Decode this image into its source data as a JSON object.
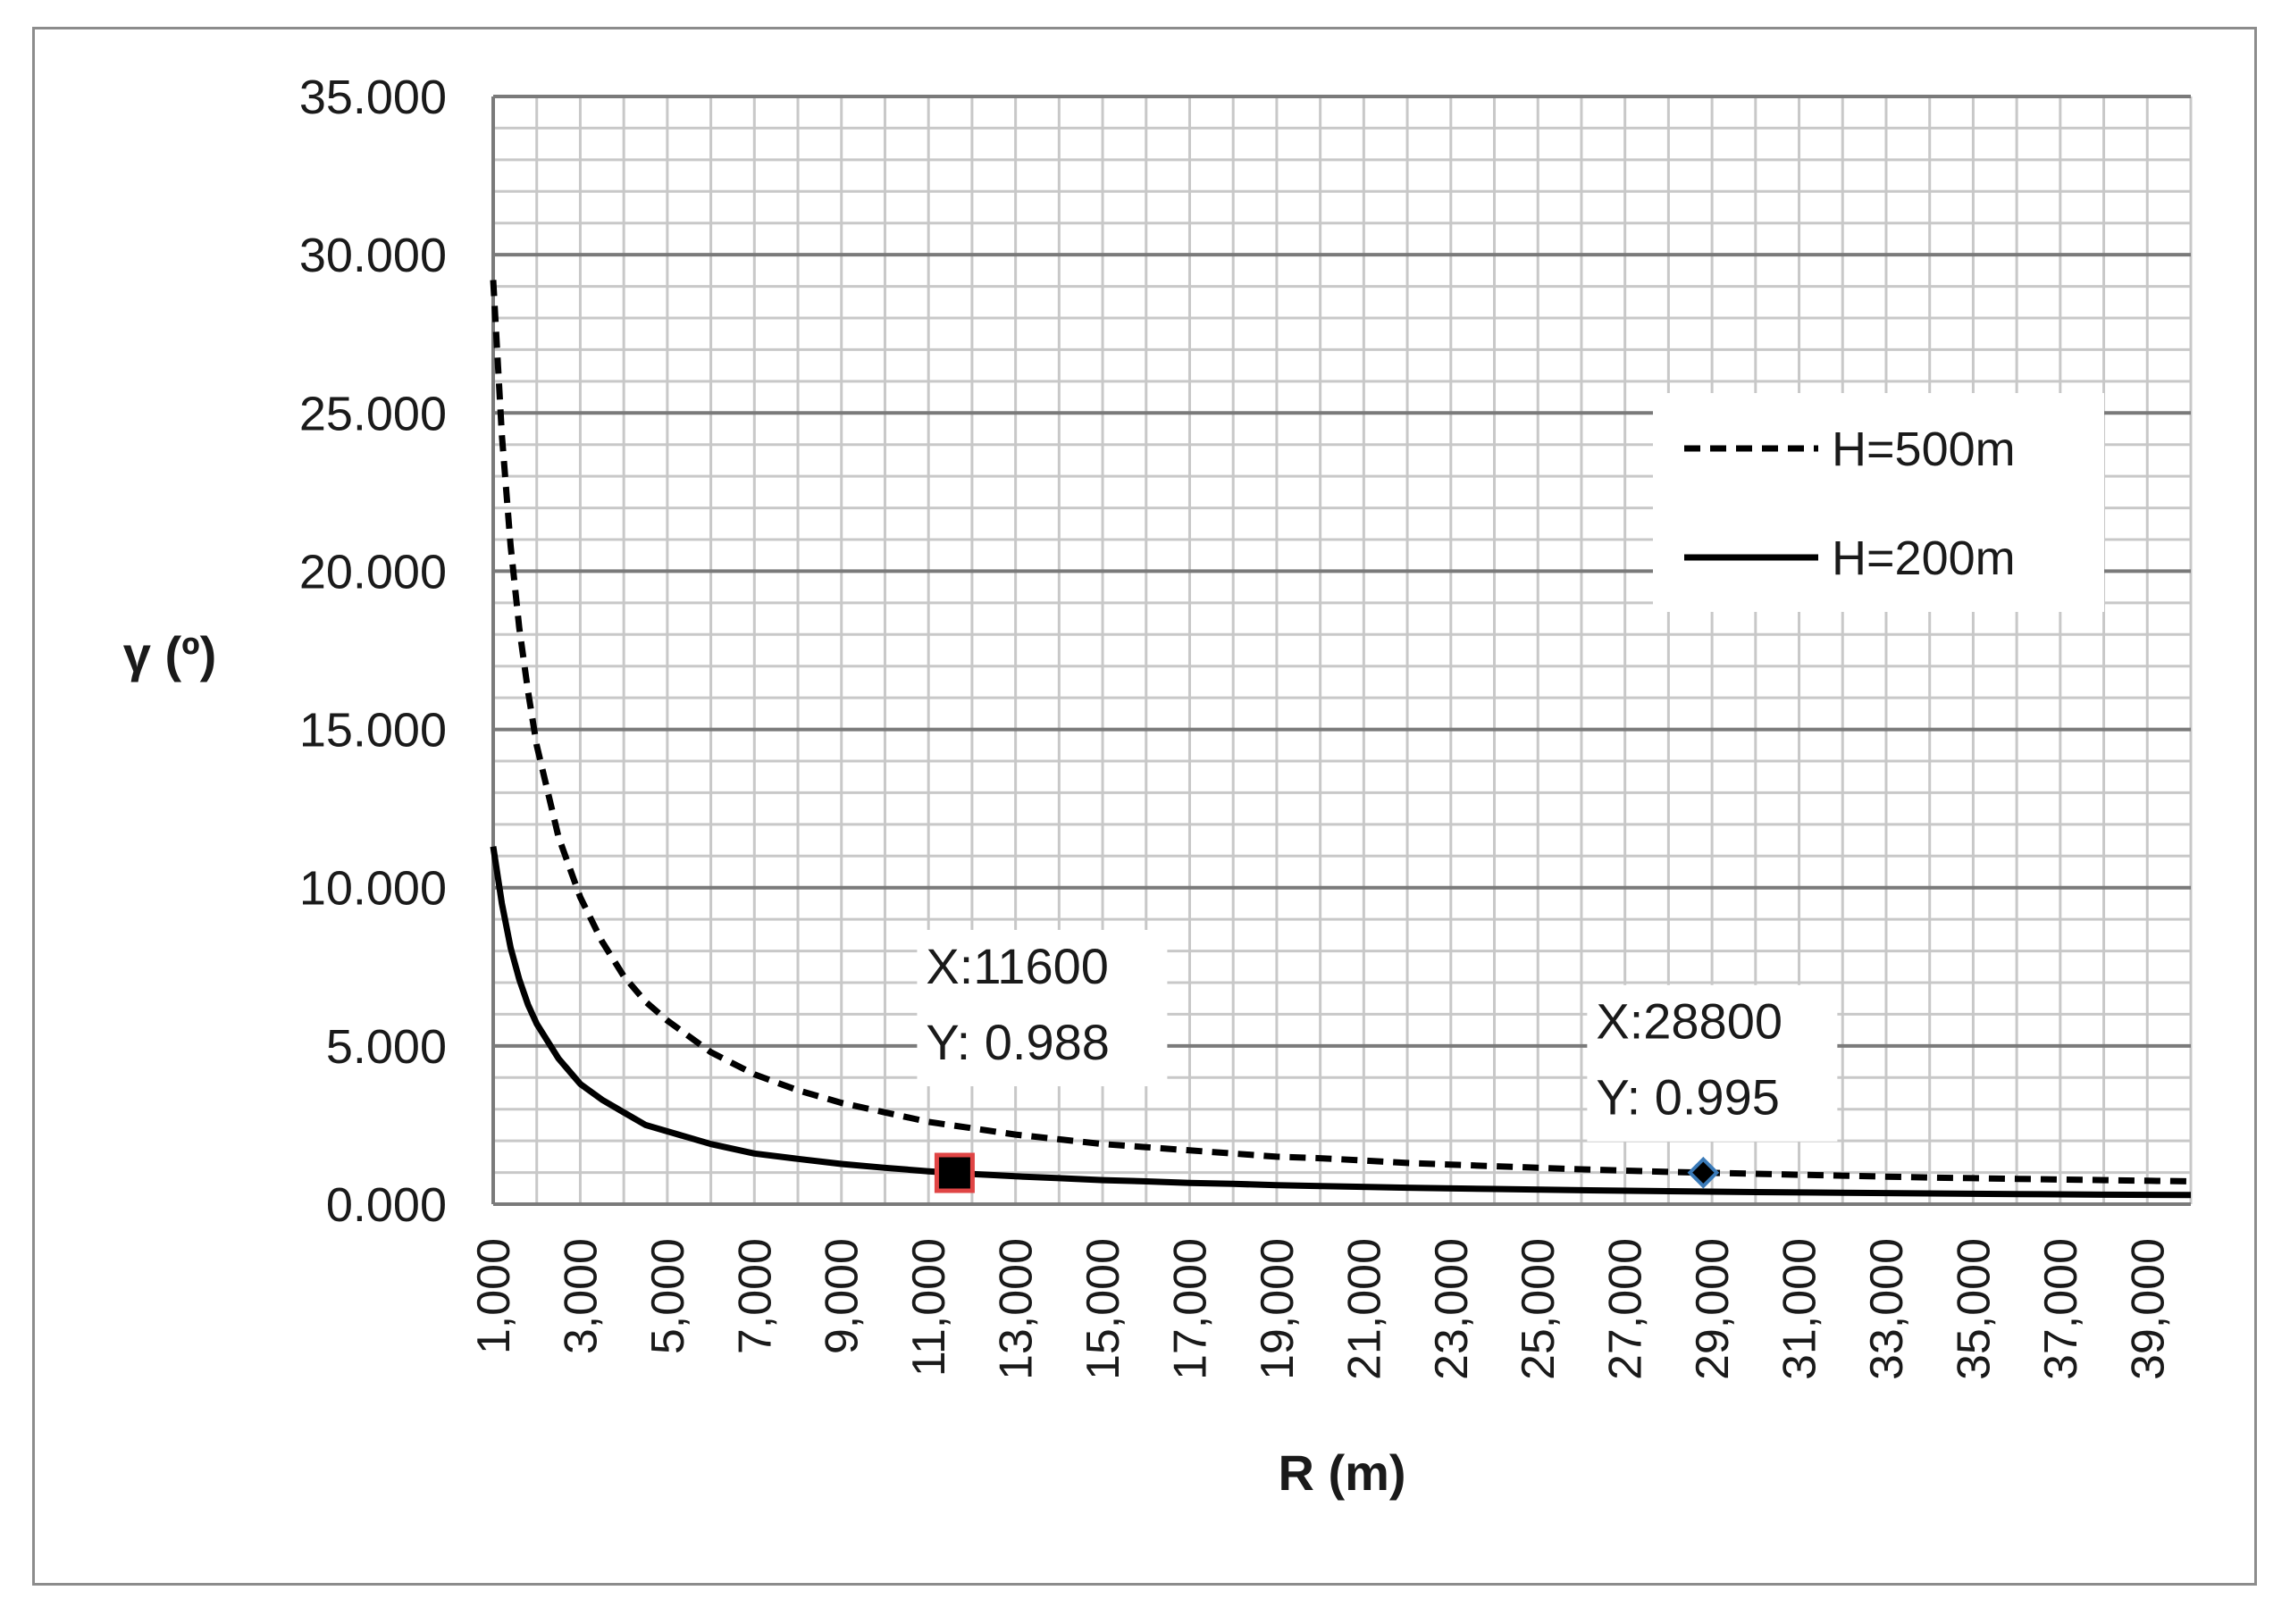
{
  "chart_data": {
    "type": "line",
    "xlabel": "R (m)",
    "ylabel": "γ (º)",
    "xlim": [
      1000,
      40000
    ],
    "ylim": [
      0,
      35
    ],
    "y_ticks": [
      0,
      5,
      10,
      15,
      20,
      25,
      30,
      35
    ],
    "y_tick_labels": [
      "0.000",
      "5.000",
      "10.000",
      "15.000",
      "20.000",
      "25.000",
      "30.000",
      "35.000"
    ],
    "x_ticks": [
      1000,
      3000,
      5000,
      7000,
      9000,
      11000,
      13000,
      15000,
      17000,
      19000,
      21000,
      23000,
      25000,
      27000,
      29000,
      31000,
      33000,
      35000,
      37000,
      39000
    ],
    "x_tick_labels": [
      "1,000",
      "3,000",
      "5,000",
      "7,000",
      "9,000",
      "11,000",
      "13,000",
      "15,000",
      "17,000",
      "19,000",
      "21,000",
      "23,000",
      "25,000",
      "27,000",
      "29,000",
      "31,000",
      "33,000",
      "35,000",
      "37,000",
      "39,000"
    ],
    "grid": true,
    "legend_position": "top-right",
    "series": [
      {
        "name": "H=500m",
        "style": "dashed",
        "color": "#000000",
        "x": [
          1000,
          1200,
          1400,
          1600,
          1800,
          2000,
          2500,
          3000,
          3500,
          4000,
          4500,
          5000,
          6000,
          7000,
          8000,
          9000,
          10000,
          11000,
          12000,
          13000,
          14000,
          15000,
          16000,
          17000,
          18000,
          19000,
          20000,
          21000,
          22000,
          23000,
          24000,
          25000,
          26000,
          27000,
          28000,
          28800,
          30000,
          31000,
          32000,
          33000,
          34000,
          35000,
          36000,
          37000,
          38000,
          39000,
          40000
        ],
        "y": [
          29.2,
          24.3,
          20.8,
          18.2,
          16.2,
          14.5,
          11.6,
          9.7,
          8.3,
          7.2,
          6.4,
          5.8,
          4.8,
          4.1,
          3.6,
          3.2,
          2.9,
          2.6,
          2.4,
          2.2,
          2.05,
          1.9,
          1.8,
          1.7,
          1.6,
          1.5,
          1.45,
          1.38,
          1.3,
          1.25,
          1.2,
          1.15,
          1.1,
          1.06,
          1.02,
          0.995,
          0.96,
          0.93,
          0.9,
          0.87,
          0.84,
          0.82,
          0.8,
          0.78,
          0.76,
          0.74,
          0.72
        ]
      },
      {
        "name": "H=200m",
        "style": "solid",
        "color": "#000000",
        "x": [
          1000,
          1200,
          1400,
          1600,
          1800,
          2000,
          2500,
          3000,
          3500,
          4000,
          4500,
          5000,
          6000,
          7000,
          8000,
          9000,
          10000,
          11000,
          11600,
          12000,
          13000,
          14000,
          15000,
          16000,
          17000,
          18000,
          19000,
          20000,
          22000,
          24000,
          26000,
          28000,
          30000,
          32000,
          34000,
          36000,
          38000,
          40000
        ],
        "y": [
          11.3,
          9.5,
          8.1,
          7.1,
          6.3,
          5.7,
          4.6,
          3.8,
          3.3,
          2.9,
          2.5,
          2.3,
          1.9,
          1.6,
          1.43,
          1.27,
          1.15,
          1.04,
          0.988,
          0.95,
          0.88,
          0.82,
          0.76,
          0.72,
          0.67,
          0.64,
          0.6,
          0.57,
          0.52,
          0.48,
          0.44,
          0.41,
          0.38,
          0.36,
          0.34,
          0.32,
          0.3,
          0.29
        ]
      }
    ],
    "annotations": [
      {
        "x": 11600,
        "y": 0.988,
        "line1": "X:11600",
        "line2": "Y: 0.988",
        "marker": "square",
        "fill": "#000000",
        "stroke": "#e04545"
      },
      {
        "x": 28800,
        "y": 0.995,
        "line1": "X:28800",
        "line2": "Y: 0.995",
        "marker": "diamond",
        "fill": "#000000",
        "stroke": "#3a7ab8"
      }
    ]
  }
}
